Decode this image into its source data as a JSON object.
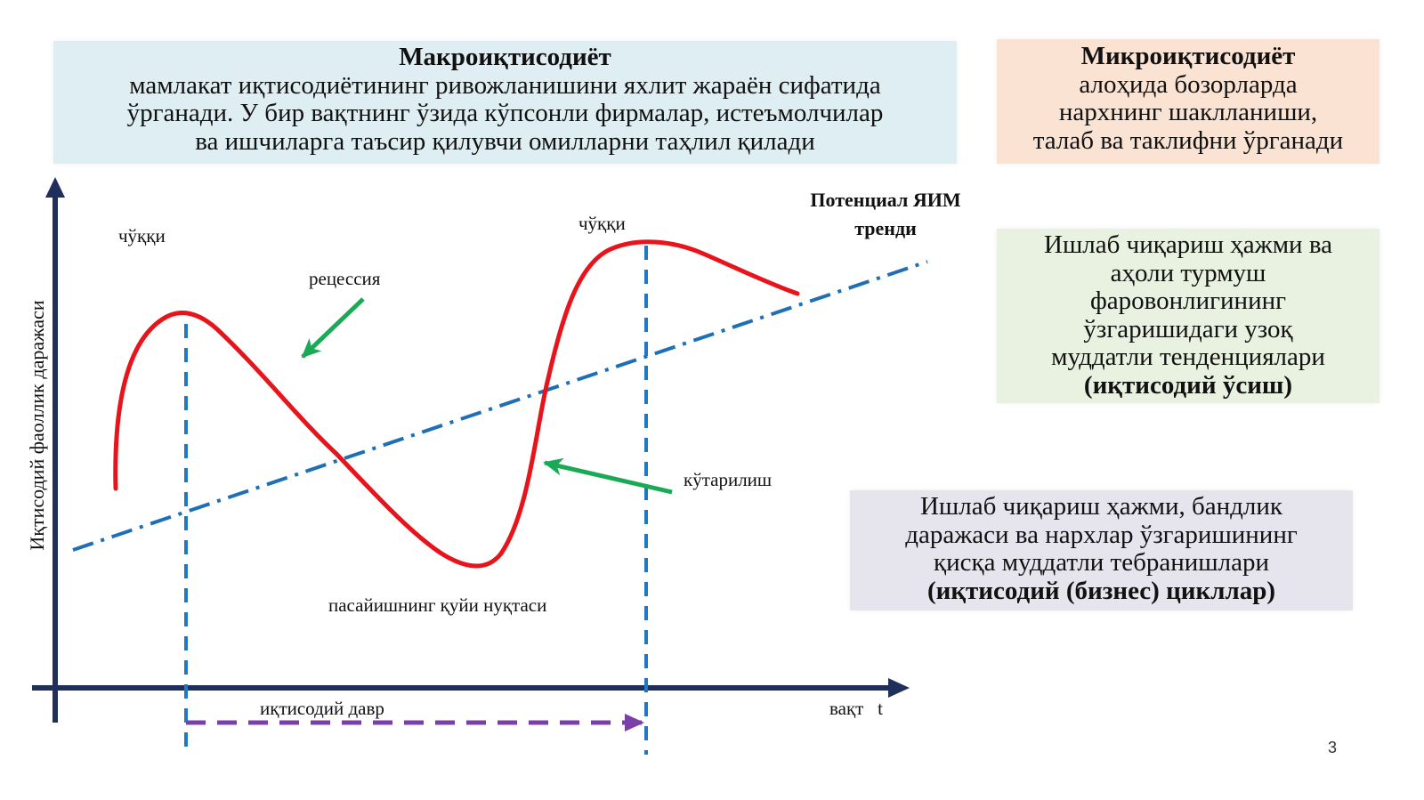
{
  "macro": {
    "title": "Макроиқтисодиёт",
    "line1": "мамлакат иқтисодиётининг ривожланишини яхлит жараён сифатида",
    "line2": "ўрганади. У бир вақтнинг ўзида кўпсонли фирмалар, истеъмолчилар",
    "line3": "ва ишчиларга таъсир қилувчи омилларни таҳлил қилади"
  },
  "micro": {
    "title": "Микроиқтисодиёт",
    "line1": "алоҳида бозорларда",
    "line2": "нархнинг шаклланиши,",
    "line3": "талаб ва таклифни ўрганади"
  },
  "growth": {
    "line1": "Ишлаб чиқариш ҳажми ва",
    "line2": "аҳоли турмуш",
    "line3": "фаровонлигининг",
    "line4": "ўзгаришидаги узоқ",
    "line5": "муддатли тенденциялари",
    "open": "(",
    "bold": "иқтисодий ўсиш",
    "close": ")"
  },
  "cycles": {
    "line1": "Ишлаб чиқариш ҳажми, бандлик",
    "line2": "даражаси ва нархлар ўзгаришининг",
    "line3": "қисқа муддатли тебранишлари",
    "open": "(",
    "bold": "иқтисодий (бизнес) цикллар",
    "close": ")"
  },
  "diagram": {
    "y_axis_label": "Иқтисодий фаоллик даражаси",
    "x_axis_label": "вақт   t",
    "trend_label_line1": "Потенциал ЯИМ",
    "trend_label_line2": "тренди",
    "peak_label_1": "чўққи",
    "peak_label_2": "чўққи",
    "recession_label": "рецессия",
    "expansion_label": "кўтарилиш",
    "trough_label": "пасайишнинг қуйи нуқтаси",
    "cycle_label": "иқтисодий давр",
    "colors": {
      "axes": "#1f2f5c",
      "curve": "#e8141b",
      "trend": "#1f6fb6",
      "markers": "#1f78c1",
      "arrows": "#1aaa55",
      "cycle_arrow": "#7a3fa8"
    }
  },
  "page_number": "3"
}
